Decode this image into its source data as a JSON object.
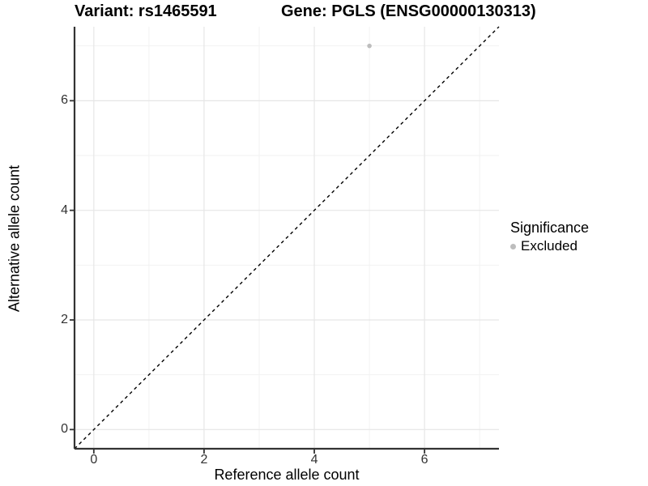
{
  "title": {
    "variant": "Variant: rs1465591",
    "gene": "Gene: PGLS (ENSG00000130313)"
  },
  "chart_data": {
    "type": "scatter",
    "xlabel": "Reference allele count",
    "ylabel": "Alternative allele count",
    "xlim": [
      -0.35,
      7.35
    ],
    "ylim": [
      -0.35,
      7.35
    ],
    "x_major_ticks": [
      0,
      2,
      4,
      6
    ],
    "y_major_ticks": [
      0,
      2,
      4,
      6
    ],
    "x_minor_gridlines": [
      1,
      3,
      5,
      7
    ],
    "y_minor_gridlines": [
      1,
      3,
      5,
      7
    ],
    "grid": true,
    "points": [
      {
        "x": 5,
        "y": 7,
        "series": "Excluded"
      }
    ],
    "reference_line": {
      "type": "identity",
      "style": "dashed",
      "from": [
        -0.35,
        -0.35
      ],
      "to": [
        7.35,
        7.35
      ]
    },
    "legend": {
      "title": "Significance",
      "position": "right",
      "entries": [
        {
          "label": "Excluded",
          "color": "#bdbdbd",
          "marker": "circle"
        }
      ]
    },
    "colors": {
      "point": "#bdbdbd",
      "gridline_major": "#e6e6e6",
      "gridline_minor": "#f2f2f2",
      "axis_line": "#333333",
      "tick_text": "#333333",
      "dashed_line": "#000000",
      "background": "#ffffff"
    }
  }
}
